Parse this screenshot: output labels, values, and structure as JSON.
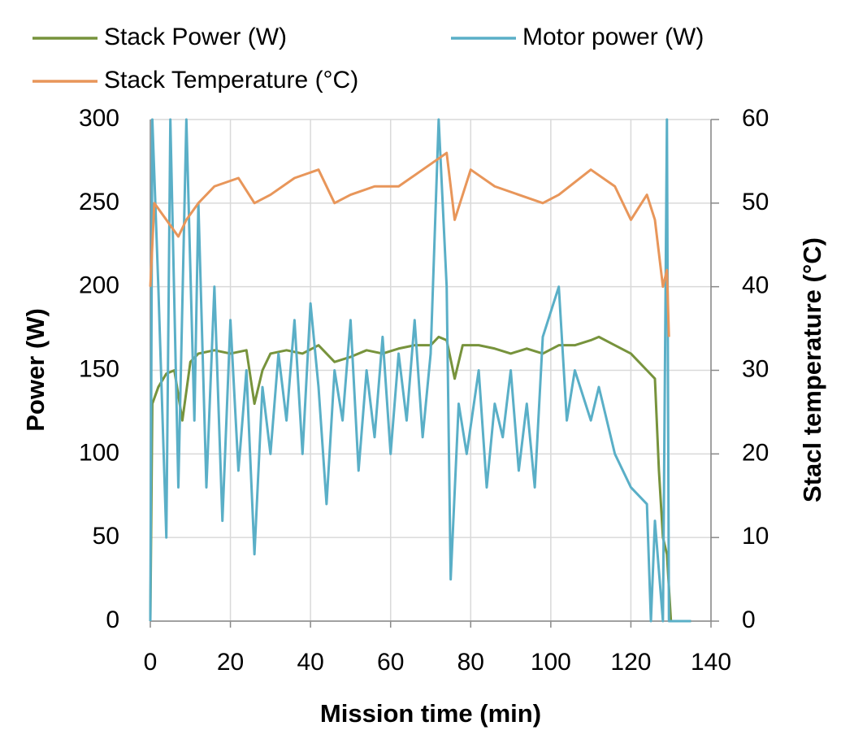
{
  "chart_data": {
    "type": "line",
    "xlabel": "Mission time (min)",
    "ylabel": "Power (W)",
    "y2label": "Stacl temperature (°C)",
    "xlim": [
      0,
      140
    ],
    "xticks": [
      0,
      20,
      40,
      60,
      80,
      100,
      120,
      140
    ],
    "ylim": [
      0,
      300
    ],
    "yticks": [
      0,
      50,
      100,
      150,
      200,
      250,
      300
    ],
    "y2lim": [
      0,
      60
    ],
    "y2ticks": [
      0,
      10,
      20,
      30,
      40,
      50,
      60
    ],
    "grid": true,
    "series": [
      {
        "name": "Stack Power (W)",
        "color": "#77933c",
        "x": [
          0,
          0.5,
          2,
          4,
          6,
          8,
          10,
          12,
          16,
          20,
          24,
          26,
          28,
          30,
          34,
          38,
          42,
          46,
          50,
          54,
          58,
          62,
          66,
          70,
          72,
          74,
          76,
          78,
          82,
          86,
          90,
          94,
          98,
          102,
          106,
          110,
          112,
          116,
          120,
          124,
          126,
          127,
          128,
          129,
          130,
          135
        ],
        "values": [
          0,
          130,
          140,
          148,
          150,
          120,
          155,
          160,
          162,
          160,
          162,
          130,
          150,
          160,
          162,
          160,
          165,
          155,
          158,
          162,
          160,
          163,
          165,
          165,
          170,
          168,
          145,
          165,
          165,
          163,
          160,
          163,
          160,
          165,
          165,
          168,
          170,
          165,
          160,
          150,
          145,
          90,
          50,
          40,
          0,
          0
        ]
      },
      {
        "name": "Motor power (W)",
        "color": "#5aafc7",
        "x": [
          0,
          0.5,
          2,
          4,
          5,
          7,
          9,
          11,
          12,
          14,
          16,
          18,
          20,
          22,
          24,
          26,
          28,
          30,
          32,
          34,
          36,
          38,
          40,
          42,
          44,
          46,
          48,
          50,
          52,
          54,
          56,
          58,
          60,
          62,
          64,
          66,
          68,
          70,
          72,
          74,
          75,
          77,
          79,
          82,
          84,
          86,
          88,
          90,
          92,
          94,
          96,
          98,
          102,
          104,
          106,
          110,
          112,
          116,
          120,
          124,
          125,
          126,
          128,
          129,
          129.5,
          135
        ],
        "values": [
          0,
          300,
          200,
          50,
          300,
          80,
          300,
          120,
          250,
          80,
          200,
          60,
          180,
          90,
          150,
          40,
          140,
          100,
          160,
          120,
          180,
          100,
          190,
          140,
          70,
          150,
          120,
          180,
          90,
          150,
          110,
          170,
          100,
          160,
          120,
          180,
          110,
          160,
          300,
          200,
          25,
          130,
          100,
          150,
          80,
          130,
          110,
          150,
          90,
          130,
          80,
          170,
          200,
          120,
          150,
          120,
          140,
          100,
          80,
          70,
          0,
          60,
          0,
          300,
          0,
          0
        ]
      },
      {
        "name": "Stack Temperature (°C)",
        "color": "#e8965a",
        "axis": "y2",
        "x": [
          0,
          1,
          4,
          7,
          9,
          12,
          16,
          22,
          26,
          30,
          36,
          42,
          46,
          50,
          56,
          62,
          68,
          74,
          76,
          80,
          86,
          92,
          98,
          102,
          110,
          116,
          120,
          124,
          126,
          128,
          129,
          129.5
        ],
        "values": [
          40,
          50,
          48,
          46,
          48,
          50,
          52,
          53,
          50,
          51,
          53,
          54,
          50,
          51,
          52,
          52,
          54,
          56,
          48,
          54,
          52,
          51,
          50,
          51,
          54,
          52,
          48,
          51,
          48,
          40,
          42,
          34
        ]
      }
    ]
  }
}
